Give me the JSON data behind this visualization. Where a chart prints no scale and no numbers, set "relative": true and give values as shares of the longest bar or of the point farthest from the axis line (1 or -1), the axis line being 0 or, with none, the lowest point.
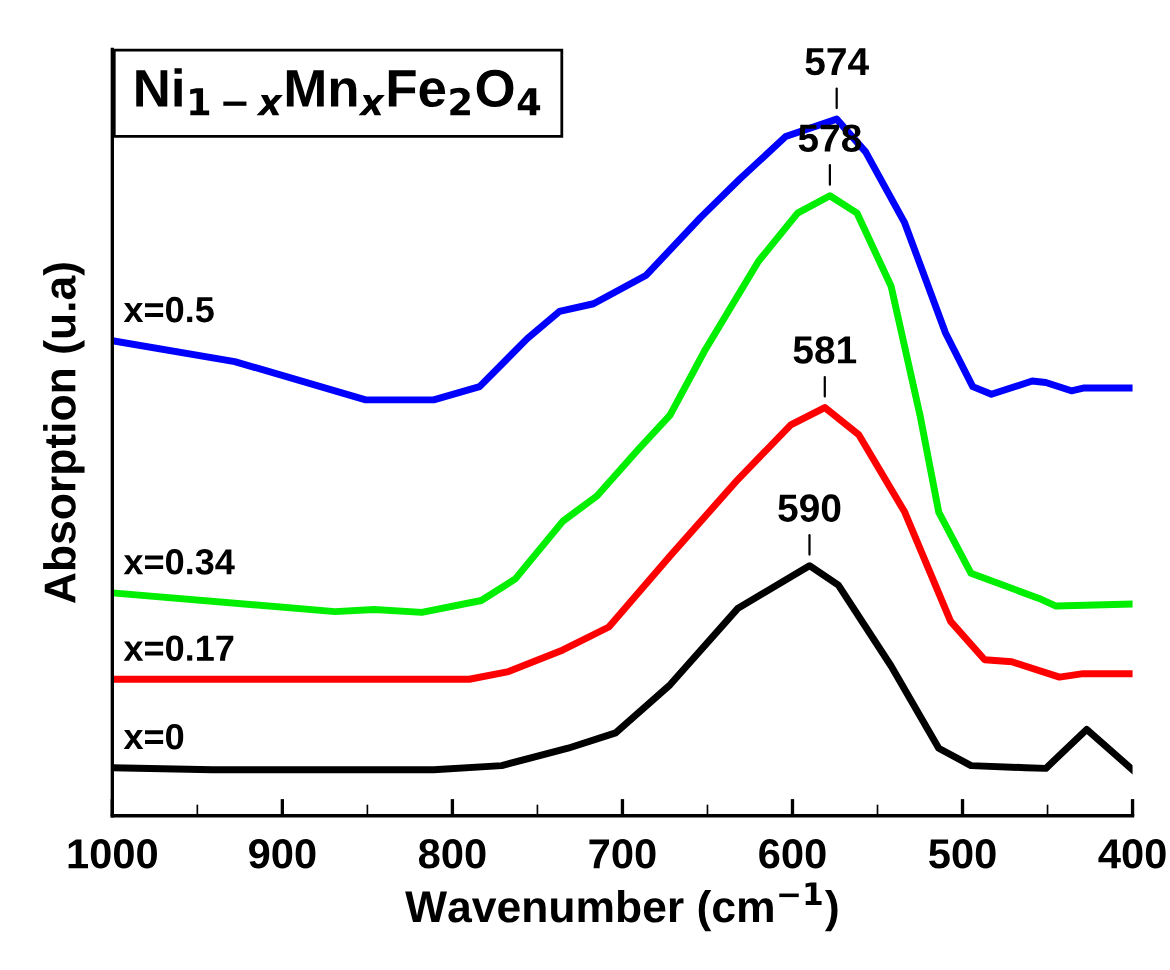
{
  "chart_data": {
    "type": "line",
    "relative": true,
    "title": "Ni$_{1−x}$Mn$_{x}$Fe$_{2}$O$_{4}$",
    "xlabel": "Wavenumber (cm$^{−1}$)",
    "ylabel": "Absorption (u.a)",
    "xlim": [
      1000,
      400
    ],
    "xticks": [
      1000,
      900,
      800,
      700,
      600,
      500,
      400
    ],
    "line_style": "solid",
    "series": [
      {
        "name": "x=0",
        "color": "#000000",
        "x": [
          1000,
          941,
          811,
          771,
          732,
          704,
          672,
          632,
          590,
          573,
          542,
          514,
          495,
          463,
          451,
          427,
          400
        ],
        "values": [
          0.069,
          0.066,
          0.066,
          0.072,
          0.097,
          0.119,
          0.188,
          0.298,
          0.359,
          0.331,
          0.215,
          0.097,
          0.072,
          0.069,
          0.068,
          0.124,
          0.066
        ]
      },
      {
        "name": "x=0.17",
        "color": "#ff0000",
        "x": [
          1000,
          790,
          767,
          735,
          708,
          672,
          632,
          601,
          581,
          561,
          534,
          507,
          487,
          471,
          443,
          429,
          400
        ],
        "values": [
          0.196,
          0.196,
          0.207,
          0.238,
          0.271,
          0.373,
          0.483,
          0.561,
          0.586,
          0.547,
          0.436,
          0.279,
          0.224,
          0.221,
          0.199,
          0.204,
          0.204
        ]
      },
      {
        "name": "x=0.34",
        "color": "#00ee00",
        "x": [
          1000,
          869,
          846,
          818,
          783,
          763,
          735,
          715,
          691,
          672,
          652,
          620,
          597,
          578,
          562,
          542,
          525,
          514,
          495,
          455,
          445,
          400
        ],
        "values": [
          0.32,
          0.293,
          0.296,
          0.292,
          0.309,
          0.34,
          0.423,
          0.459,
          0.525,
          0.575,
          0.666,
          0.796,
          0.865,
          0.89,
          0.865,
          0.76,
          0.575,
          0.436,
          0.348,
          0.312,
          0.301,
          0.304
        ]
      },
      {
        "name": "x=0.5",
        "color": "#0000ff",
        "x": [
          1000,
          928,
          851,
          811,
          784,
          756,
          737,
          717,
          686,
          654,
          631,
          604,
          574,
          557,
          534,
          510,
          494,
          483,
          459,
          451,
          436,
          429,
          400
        ],
        "values": [
          0.682,
          0.652,
          0.597,
          0.597,
          0.616,
          0.685,
          0.724,
          0.735,
          0.776,
          0.859,
          0.914,
          0.975,
          1.0,
          0.953,
          0.851,
          0.693,
          0.616,
          0.605,
          0.624,
          0.622,
          0.61,
          0.614,
          0.614
        ]
      }
    ],
    "annotations": [
      {
        "text": "574",
        "x": 574,
        "y": 1.0
      },
      {
        "text": "578",
        "x": 578,
        "y": 0.89
      },
      {
        "text": "581",
        "x": 581,
        "y": 0.586
      },
      {
        "text": "590",
        "x": 590,
        "y": 0.359
      }
    ]
  }
}
